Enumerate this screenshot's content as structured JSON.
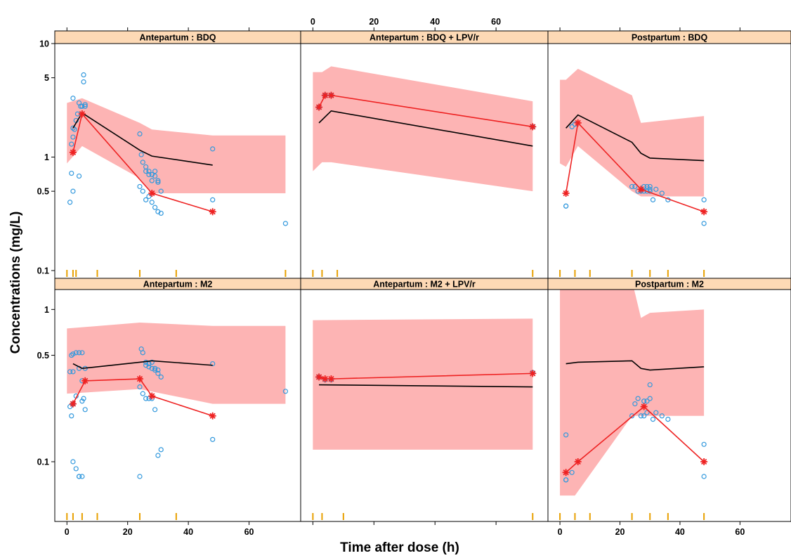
{
  "chart_data": {
    "type": "scatter",
    "xlabel": "Time after dose (h)",
    "ylabel": "Concentrations (mg/L)",
    "x_ticks": [
      "0",
      "20",
      "40",
      "60"
    ],
    "colors": {
      "band": "#fdb4b4",
      "median": "#000000",
      "observed_median": "#ee2222",
      "points": "#3399dd",
      "rug": "#e8a000",
      "strip": "#fdd9b5"
    },
    "panels": [
      {
        "title": "Antepartum : BDQ",
        "row": 0,
        "col": 0,
        "ylim": [
          0.1,
          10
        ],
        "yscale": "log",
        "y_ticks": [
          "10",
          "5",
          "1",
          "0.5",
          "0.1"
        ],
        "band_x": [
          0,
          5,
          24,
          28,
          48,
          72
        ],
        "band_upper": [
          3.0,
          3.3,
          2.0,
          1.75,
          1.55,
          1.55
        ],
        "band_lower": [
          0.88,
          1.25,
          0.65,
          0.48,
          0.48,
          0.48
        ],
        "median_x": [
          2,
          5,
          24,
          28,
          48
        ],
        "median_y": [
          1.8,
          2.45,
          1.15,
          1.02,
          0.85
        ],
        "observed_x": [
          2,
          5,
          28,
          48
        ],
        "observed_y": [
          1.1,
          2.4,
          0.48,
          0.33
        ],
        "points_x": [
          1,
          1.5,
          2,
          2,
          2,
          2.5,
          3,
          3.5,
          4,
          4.5,
          5,
          5.5,
          5.5,
          6,
          6,
          1.5,
          2,
          4,
          24,
          24.5,
          25,
          26,
          26,
          27,
          27,
          28,
          28,
          29,
          29,
          30,
          30,
          31,
          24,
          25,
          26,
          27,
          28,
          29,
          30,
          31,
          48,
          48,
          72
        ],
        "points_y": [
          0.4,
          1.3,
          1.5,
          1.8,
          3.3,
          1.75,
          2.1,
          2.4,
          3.0,
          2.8,
          2.8,
          5.3,
          4.6,
          2.8,
          2.9,
          0.72,
          0.5,
          0.68,
          1.6,
          1.05,
          0.9,
          0.75,
          0.82,
          0.75,
          0.7,
          0.7,
          0.62,
          0.75,
          0.68,
          0.6,
          0.62,
          0.5,
          0.55,
          0.5,
          0.42,
          0.45,
          0.4,
          0.36,
          0.33,
          0.32,
          1.18,
          0.42,
          0.26
        ],
        "rug_x": [
          0,
          2,
          3,
          10,
          24,
          36,
          72
        ]
      },
      {
        "title": "Antepartum : BDQ + LPV/r",
        "row": 0,
        "col": 1,
        "ylim": [
          0.1,
          10
        ],
        "yscale": "log",
        "band_x": [
          0,
          3,
          6,
          72
        ],
        "band_upper": [
          5.6,
          5.6,
          6.3,
          3.1
        ],
        "band_lower": [
          0.75,
          0.9,
          0.9,
          0.5
        ],
        "median_x": [
          2,
          6,
          72
        ],
        "median_y": [
          2.0,
          2.55,
          1.25
        ],
        "observed_x": [
          2,
          4,
          6,
          72
        ],
        "observed_y": [
          2.75,
          3.5,
          3.5,
          1.85
        ],
        "points_x": [
          2,
          4,
          6,
          72
        ],
        "points_y": [
          2.75,
          3.5,
          3.5,
          1.85
        ],
        "rug_x": [
          0,
          3,
          8,
          72
        ]
      },
      {
        "title": "Postpartum : BDQ",
        "row": 0,
        "col": 2,
        "ylim": [
          0.1,
          10
        ],
        "yscale": "log",
        "band_x": [
          0,
          2,
          6,
          24,
          27,
          48
        ],
        "band_upper": [
          4.8,
          4.8,
          6.0,
          3.5,
          2.0,
          2.3
        ],
        "band_lower": [
          0.88,
          0.82,
          1.25,
          0.5,
          0.45,
          0.45
        ],
        "median_x": [
          2,
          6,
          24,
          27,
          30,
          48
        ],
        "median_y": [
          1.8,
          2.35,
          1.35,
          1.08,
          0.98,
          0.93
        ],
        "observed_x": [
          2,
          6,
          27,
          48
        ],
        "observed_y": [
          0.48,
          2.0,
          0.52,
          0.33
        ],
        "points_x": [
          2,
          4,
          5,
          24,
          25,
          26,
          27,
          28,
          28,
          29,
          29,
          30,
          30,
          30,
          31,
          32,
          34,
          36,
          48,
          48,
          2
        ],
        "points_y": [
          0.37,
          1.85,
          1.95,
          0.55,
          0.55,
          0.5,
          0.5,
          0.55,
          0.5,
          0.5,
          0.55,
          0.55,
          0.52,
          0.5,
          0.42,
          0.52,
          0.48,
          0.42,
          0.42,
          0.26,
          0.37
        ],
        "rug_x": [
          0,
          5,
          10,
          24,
          30,
          36,
          48
        ]
      },
      {
        "title": "Antepartum : M2",
        "row": 1,
        "col": 0,
        "ylim": [
          0.04,
          1.5
        ],
        "yscale": "log",
        "y_ticks": [
          "1",
          "0.5",
          "0.1"
        ],
        "band_x": [
          0,
          24,
          48,
          72
        ],
        "band_upper": [
          0.75,
          0.82,
          0.78,
          0.78
        ],
        "band_lower": [
          0.28,
          0.3,
          0.24,
          0.24
        ],
        "median_x": [
          2,
          5,
          24,
          28,
          48
        ],
        "median_y": [
          0.44,
          0.41,
          0.45,
          0.46,
          0.43
        ],
        "observed_x": [
          2,
          6,
          24,
          28,
          48
        ],
        "observed_y": [
          0.24,
          0.34,
          0.35,
          0.27,
          0.2
        ],
        "points_x": [
          1,
          1.5,
          2,
          2,
          3,
          4,
          4,
          5,
          5,
          5,
          5.5,
          6,
          6,
          1,
          1.5,
          2,
          3,
          4,
          24,
          24.5,
          25,
          26,
          26,
          27,
          27,
          28,
          28,
          29,
          29,
          30,
          30,
          31,
          24,
          25,
          26,
          27,
          28,
          29,
          30,
          31,
          48,
          48,
          72,
          2,
          3,
          4,
          5
        ],
        "points_y": [
          0.23,
          0.5,
          0.51,
          0.39,
          0.52,
          0.41,
          0.52,
          0.52,
          0.34,
          0.25,
          0.26,
          0.22,
          0.41,
          0.39,
          0.2,
          0.24,
          0.27,
          0.08,
          0.08,
          0.55,
          0.52,
          0.45,
          0.43,
          0.42,
          0.44,
          0.45,
          0.41,
          0.4,
          0.41,
          0.38,
          0.4,
          0.36,
          0.31,
          0.28,
          0.26,
          0.26,
          0.26,
          0.22,
          0.11,
          0.12,
          0.14,
          0.44,
          0.29,
          0.1,
          0.09,
          0.08,
          0.08
        ],
        "rug_x": [
          0,
          2,
          5,
          10,
          24,
          36
        ]
      },
      {
        "title": "Antepartum : M2 + LPV/r",
        "row": 1,
        "col": 1,
        "ylim": [
          0.04,
          1.5
        ],
        "yscale": "log",
        "band_x": [
          0,
          72
        ],
        "band_upper": [
          0.85,
          0.87
        ],
        "band_lower": [
          0.12,
          0.12
        ],
        "median_x": [
          2,
          72
        ],
        "median_y": [
          0.32,
          0.31
        ],
        "observed_x": [
          2,
          4,
          6,
          72
        ],
        "observed_y": [
          0.36,
          0.35,
          0.35,
          0.38
        ],
        "points_x": [
          2,
          4,
          6,
          72
        ],
        "points_y": [
          0.36,
          0.345,
          0.345,
          0.385
        ],
        "rug_x": [
          0,
          3,
          10,
          72
        ]
      },
      {
        "title": "Postpartum : M2",
        "row": 1,
        "col": 2,
        "ylim": [
          0.04,
          1.5
        ],
        "yscale": "log",
        "band_x": [
          0,
          5,
          24,
          27,
          30,
          48
        ],
        "band_upper": [
          1.4,
          1.45,
          1.55,
          0.88,
          0.95,
          1.0
        ],
        "band_lower": [
          0.06,
          0.06,
          0.2,
          0.2,
          0.2,
          0.2
        ],
        "median_x": [
          2,
          6,
          24,
          27,
          30,
          48
        ],
        "median_y": [
          0.44,
          0.45,
          0.46,
          0.41,
          0.4,
          0.42
        ],
        "observed_x": [
          2,
          6,
          28,
          48
        ],
        "observed_y": [
          0.085,
          0.1,
          0.23,
          0.1
        ],
        "points_x": [
          2,
          2,
          4,
          24,
          25,
          26,
          27,
          28,
          28,
          29,
          29,
          30,
          30,
          31,
          32,
          34,
          36,
          48,
          48,
          2
        ],
        "points_y": [
          0.076,
          0.15,
          0.085,
          0.2,
          0.24,
          0.26,
          0.2,
          0.25,
          0.2,
          0.21,
          0.25,
          0.32,
          0.26,
          0.19,
          0.21,
          0.2,
          0.19,
          0.13,
          0.08,
          0.076
        ],
        "rug_x": [
          0,
          5,
          10,
          24,
          30,
          36,
          48
        ]
      }
    ]
  }
}
